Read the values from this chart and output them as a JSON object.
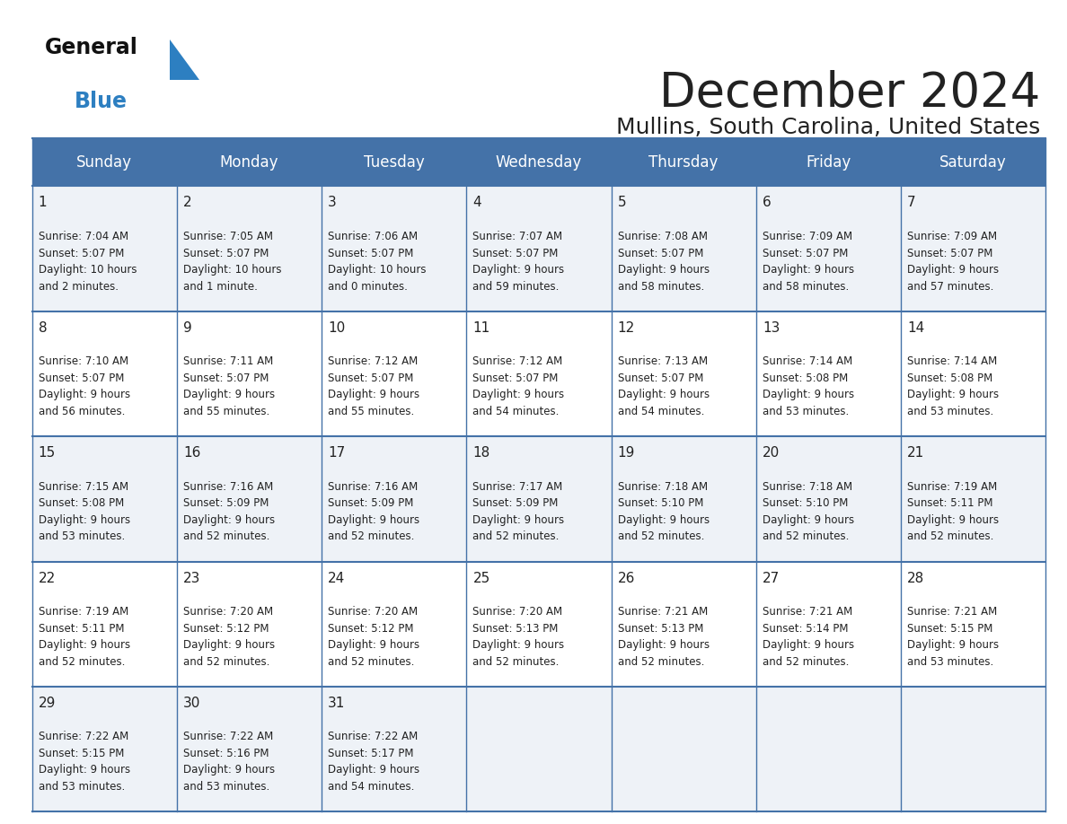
{
  "title": "December 2024",
  "subtitle": "Mullins, South Carolina, United States",
  "days_of_week": [
    "Sunday",
    "Monday",
    "Tuesday",
    "Wednesday",
    "Thursday",
    "Friday",
    "Saturday"
  ],
  "header_bg": "#4472a8",
  "header_text": "#ffffff",
  "cell_bg_odd": "#eef2f7",
  "cell_bg_even": "#ffffff",
  "border_color": "#4472a8",
  "text_color": "#222222",
  "logo_general_color": "#111111",
  "logo_blue_color": "#2d7fc1",
  "title_fontsize": 38,
  "subtitle_fontsize": 18,
  "header_fontsize": 12,
  "daynum_fontsize": 11,
  "info_fontsize": 8.5,
  "days": [
    {
      "day": 1,
      "col": 0,
      "row": 0,
      "sunrise": "7:04 AM",
      "sunset": "5:07 PM",
      "daylight": "10 hours\nand 2 minutes."
    },
    {
      "day": 2,
      "col": 1,
      "row": 0,
      "sunrise": "7:05 AM",
      "sunset": "5:07 PM",
      "daylight": "10 hours\nand 1 minute."
    },
    {
      "day": 3,
      "col": 2,
      "row": 0,
      "sunrise": "7:06 AM",
      "sunset": "5:07 PM",
      "daylight": "10 hours\nand 0 minutes."
    },
    {
      "day": 4,
      "col": 3,
      "row": 0,
      "sunrise": "7:07 AM",
      "sunset": "5:07 PM",
      "daylight": "9 hours\nand 59 minutes."
    },
    {
      "day": 5,
      "col": 4,
      "row": 0,
      "sunrise": "7:08 AM",
      "sunset": "5:07 PM",
      "daylight": "9 hours\nand 58 minutes."
    },
    {
      "day": 6,
      "col": 5,
      "row": 0,
      "sunrise": "7:09 AM",
      "sunset": "5:07 PM",
      "daylight": "9 hours\nand 58 minutes."
    },
    {
      "day": 7,
      "col": 6,
      "row": 0,
      "sunrise": "7:09 AM",
      "sunset": "5:07 PM",
      "daylight": "9 hours\nand 57 minutes."
    },
    {
      "day": 8,
      "col": 0,
      "row": 1,
      "sunrise": "7:10 AM",
      "sunset": "5:07 PM",
      "daylight": "9 hours\nand 56 minutes."
    },
    {
      "day": 9,
      "col": 1,
      "row": 1,
      "sunrise": "7:11 AM",
      "sunset": "5:07 PM",
      "daylight": "9 hours\nand 55 minutes."
    },
    {
      "day": 10,
      "col": 2,
      "row": 1,
      "sunrise": "7:12 AM",
      "sunset": "5:07 PM",
      "daylight": "9 hours\nand 55 minutes."
    },
    {
      "day": 11,
      "col": 3,
      "row": 1,
      "sunrise": "7:12 AM",
      "sunset": "5:07 PM",
      "daylight": "9 hours\nand 54 minutes."
    },
    {
      "day": 12,
      "col": 4,
      "row": 1,
      "sunrise": "7:13 AM",
      "sunset": "5:07 PM",
      "daylight": "9 hours\nand 54 minutes."
    },
    {
      "day": 13,
      "col": 5,
      "row": 1,
      "sunrise": "7:14 AM",
      "sunset": "5:08 PM",
      "daylight": "9 hours\nand 53 minutes."
    },
    {
      "day": 14,
      "col": 6,
      "row": 1,
      "sunrise": "7:14 AM",
      "sunset": "5:08 PM",
      "daylight": "9 hours\nand 53 minutes."
    },
    {
      "day": 15,
      "col": 0,
      "row": 2,
      "sunrise": "7:15 AM",
      "sunset": "5:08 PM",
      "daylight": "9 hours\nand 53 minutes."
    },
    {
      "day": 16,
      "col": 1,
      "row": 2,
      "sunrise": "7:16 AM",
      "sunset": "5:09 PM",
      "daylight": "9 hours\nand 52 minutes."
    },
    {
      "day": 17,
      "col": 2,
      "row": 2,
      "sunrise": "7:16 AM",
      "sunset": "5:09 PM",
      "daylight": "9 hours\nand 52 minutes."
    },
    {
      "day": 18,
      "col": 3,
      "row": 2,
      "sunrise": "7:17 AM",
      "sunset": "5:09 PM",
      "daylight": "9 hours\nand 52 minutes."
    },
    {
      "day": 19,
      "col": 4,
      "row": 2,
      "sunrise": "7:18 AM",
      "sunset": "5:10 PM",
      "daylight": "9 hours\nand 52 minutes."
    },
    {
      "day": 20,
      "col": 5,
      "row": 2,
      "sunrise": "7:18 AM",
      "sunset": "5:10 PM",
      "daylight": "9 hours\nand 52 minutes."
    },
    {
      "day": 21,
      "col": 6,
      "row": 2,
      "sunrise": "7:19 AM",
      "sunset": "5:11 PM",
      "daylight": "9 hours\nand 52 minutes."
    },
    {
      "day": 22,
      "col": 0,
      "row": 3,
      "sunrise": "7:19 AM",
      "sunset": "5:11 PM",
      "daylight": "9 hours\nand 52 minutes."
    },
    {
      "day": 23,
      "col": 1,
      "row": 3,
      "sunrise": "7:20 AM",
      "sunset": "5:12 PM",
      "daylight": "9 hours\nand 52 minutes."
    },
    {
      "day": 24,
      "col": 2,
      "row": 3,
      "sunrise": "7:20 AM",
      "sunset": "5:12 PM",
      "daylight": "9 hours\nand 52 minutes."
    },
    {
      "day": 25,
      "col": 3,
      "row": 3,
      "sunrise": "7:20 AM",
      "sunset": "5:13 PM",
      "daylight": "9 hours\nand 52 minutes."
    },
    {
      "day": 26,
      "col": 4,
      "row": 3,
      "sunrise": "7:21 AM",
      "sunset": "5:13 PM",
      "daylight": "9 hours\nand 52 minutes."
    },
    {
      "day": 27,
      "col": 5,
      "row": 3,
      "sunrise": "7:21 AM",
      "sunset": "5:14 PM",
      "daylight": "9 hours\nand 52 minutes."
    },
    {
      "day": 28,
      "col": 6,
      "row": 3,
      "sunrise": "7:21 AM",
      "sunset": "5:15 PM",
      "daylight": "9 hours\nand 53 minutes."
    },
    {
      "day": 29,
      "col": 0,
      "row": 4,
      "sunrise": "7:22 AM",
      "sunset": "5:15 PM",
      "daylight": "9 hours\nand 53 minutes."
    },
    {
      "day": 30,
      "col": 1,
      "row": 4,
      "sunrise": "7:22 AM",
      "sunset": "5:16 PM",
      "daylight": "9 hours\nand 53 minutes."
    },
    {
      "day": 31,
      "col": 2,
      "row": 4,
      "sunrise": "7:22 AM",
      "sunset": "5:17 PM",
      "daylight": "9 hours\nand 54 minutes."
    }
  ]
}
